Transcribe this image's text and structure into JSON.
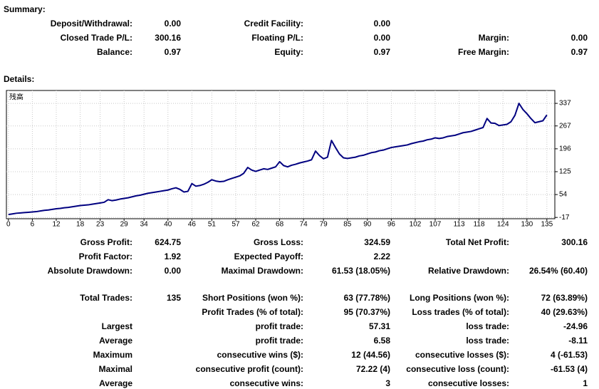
{
  "summary": {
    "title": "Summary:",
    "rows": [
      [
        {
          "label": "Deposit/Withdrawal:",
          "value": "0.00"
        },
        {
          "label": "Credit Facility:",
          "value": "0.00"
        },
        null
      ],
      [
        {
          "label": "Closed Trade P/L:",
          "value": "300.16"
        },
        {
          "label": "Floating P/L:",
          "value": "0.00"
        },
        {
          "label": "Margin:",
          "value": "0.00"
        }
      ],
      [
        {
          "label": "Balance:",
          "value": "0.97"
        },
        {
          "label": "Equity:",
          "value": "0.97"
        },
        {
          "label": "Free Margin:",
          "value": "0.97"
        }
      ]
    ]
  },
  "details": {
    "title": "Details:"
  },
  "chart_data": {
    "type": "line",
    "legend": "残高",
    "color": "#000080",
    "grid": true,
    "xlim": [
      -0.5,
      137
    ],
    "xticks": [
      0,
      6,
      12,
      18,
      23,
      29,
      34,
      40,
      46,
      51,
      57,
      62,
      68,
      74,
      79,
      85,
      90,
      96,
      102,
      107,
      113,
      118,
      124,
      130,
      135
    ],
    "ylim": [
      -21,
      377
    ],
    "yticks": [
      -17,
      54,
      125,
      196,
      267,
      337
    ],
    "values": [
      -8,
      -6,
      -4,
      -3,
      -2,
      -1,
      0,
      1,
      3,
      5,
      6,
      8,
      10,
      11,
      13,
      14,
      16,
      18,
      20,
      21,
      22,
      24,
      26,
      28,
      30,
      38,
      35,
      37,
      40,
      42,
      44,
      47,
      50,
      52,
      55,
      58,
      60,
      62,
      64,
      66,
      68,
      72,
      75,
      70,
      62,
      64,
      88,
      80,
      82,
      86,
      92,
      100,
      96,
      94,
      95,
      100,
      104,
      108,
      112,
      120,
      138,
      130,
      126,
      130,
      134,
      132,
      136,
      140,
      156,
      144,
      140,
      145,
      148,
      152,
      155,
      158,
      162,
      189,
      175,
      165,
      170,
      222,
      200,
      180,
      168,
      166,
      168,
      170,
      174,
      176,
      180,
      184,
      186,
      190,
      192,
      196,
      200,
      202,
      204,
      206,
      208,
      212,
      215,
      218,
      220,
      224,
      226,
      230,
      228,
      230,
      234,
      236,
      238,
      242,
      246,
      248,
      250,
      254,
      258,
      262,
      290,
      276,
      275,
      268,
      270,
      272,
      280,
      300,
      337,
      318,
      305,
      290,
      277,
      280,
      283,
      301
    ]
  },
  "stats": {
    "rows": [
      [
        {
          "label": "Gross Profit:",
          "value": "624.75"
        },
        {
          "label": "Gross Loss:",
          "value": "324.59"
        },
        {
          "label": "Total Net Profit:",
          "value": "300.16"
        }
      ],
      [
        {
          "label": "Profit Factor:",
          "value": "1.92"
        },
        {
          "label": "Expected Payoff:",
          "value": "2.22"
        },
        null
      ],
      [
        {
          "label": "Absolute Drawdown:",
          "value": "0.00"
        },
        {
          "label": "Maximal Drawdown:",
          "value": "61.53 (18.05%)"
        },
        {
          "label": "Relative Drawdown:",
          "value": "26.54% (60.40)"
        }
      ],
      [
        {
          "label": "Total Trades:",
          "value": "135"
        },
        {
          "label": "Short Positions (won %):",
          "value": "63 (77.78%)"
        },
        {
          "label": "Long Positions (won %):",
          "value": "72 (63.89%)"
        }
      ],
      [
        null,
        {
          "label": "Profit Trades (% of total):",
          "value": "95 (70.37%)"
        },
        {
          "label": "Loss trades (% of total):",
          "value": "40 (29.63%)"
        }
      ],
      [
        {
          "label": "Largest"
        },
        {
          "label": "profit trade:",
          "value": "57.31"
        },
        {
          "label": "loss trade:",
          "value": "-24.96"
        }
      ],
      [
        {
          "label": "Average"
        },
        {
          "label": "profit trade:",
          "value": "6.58"
        },
        {
          "label": "loss trade:",
          "value": "-8.11"
        }
      ],
      [
        {
          "label": "Maximum"
        },
        {
          "label": "consecutive wins ($):",
          "value": "12 (44.56)"
        },
        {
          "label": "consecutive losses ($):",
          "value": "4 (-61.53)"
        }
      ],
      [
        {
          "label": "Maximal"
        },
        {
          "label": "consecutive profit (count):",
          "value": "72.22 (4)"
        },
        {
          "label": "consecutive loss (count):",
          "value": "-61.53 (4)"
        }
      ],
      [
        {
          "label": "Average"
        },
        {
          "label": "consecutive wins:",
          "value": "3"
        },
        {
          "label": "consecutive losses:",
          "value": "1"
        }
      ]
    ]
  }
}
